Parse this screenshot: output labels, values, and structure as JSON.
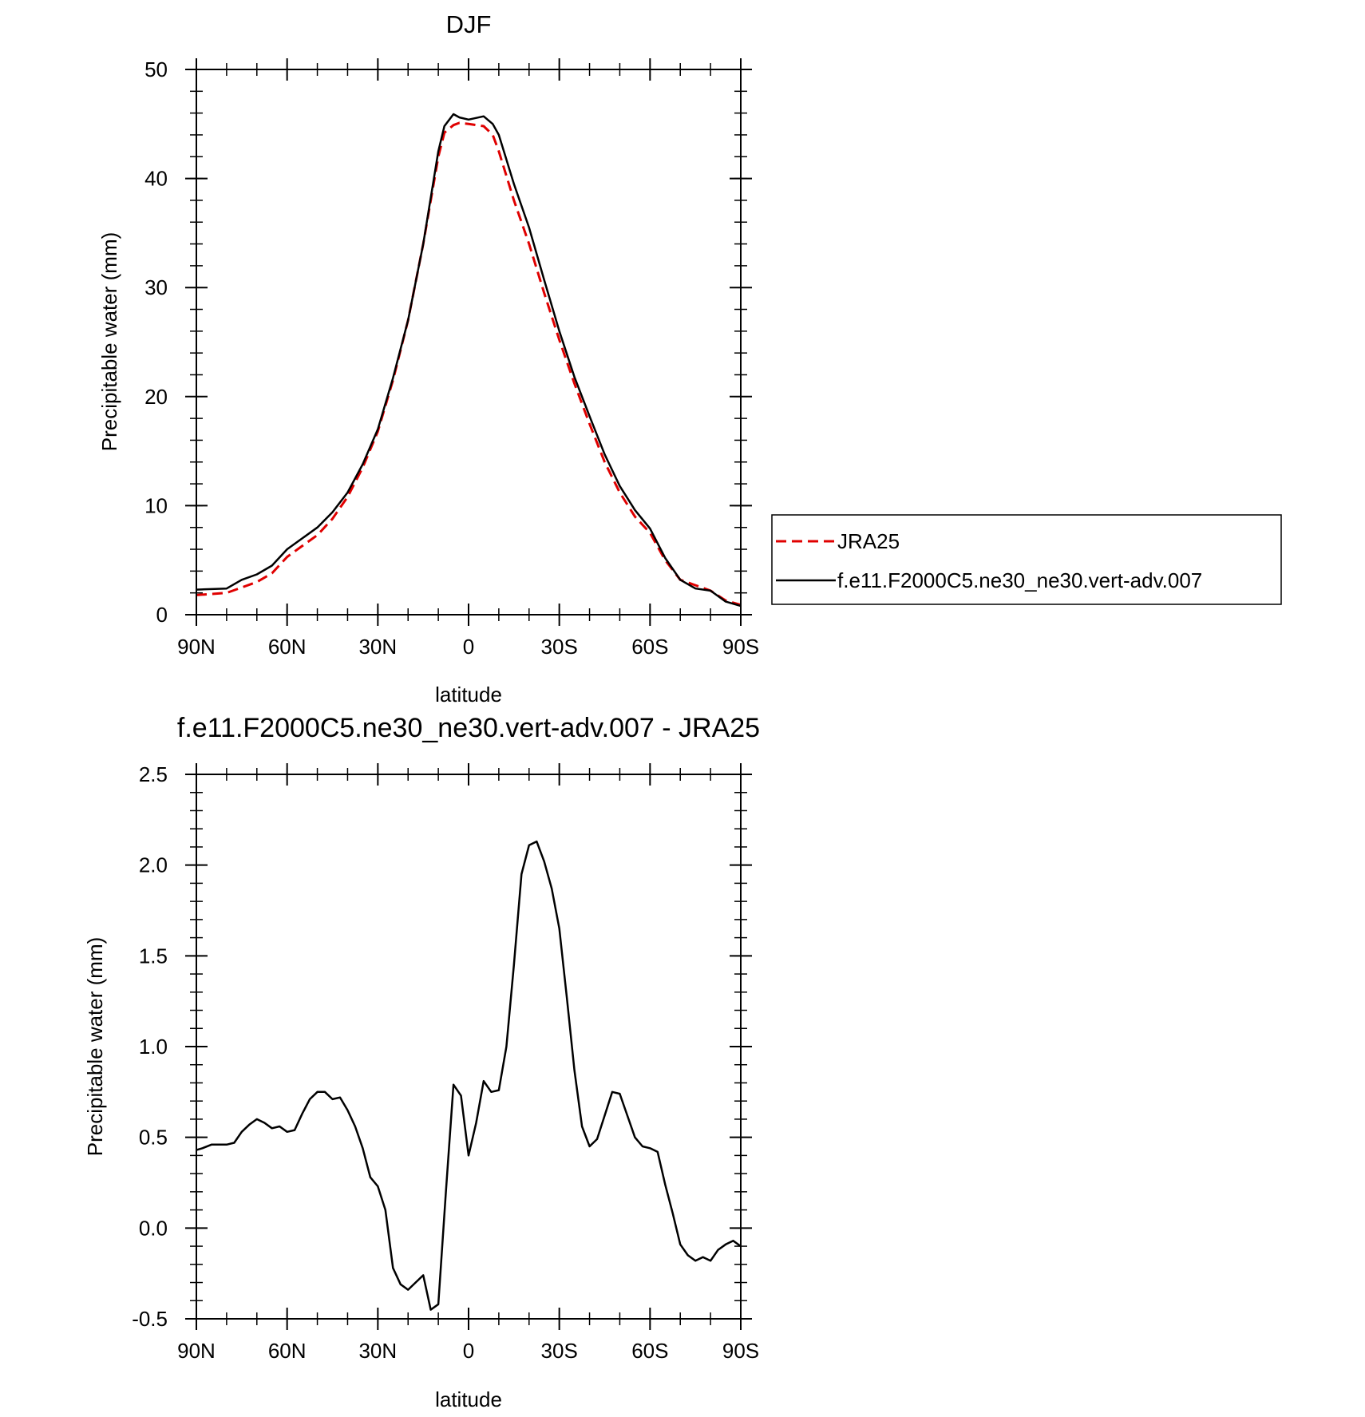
{
  "chart_data": [
    {
      "type": "line",
      "title": "DJF",
      "xlabel": "latitude",
      "ylabel": "Precipitable water (mm)",
      "xlim": [
        90,
        -90
      ],
      "ylim": [
        0,
        50
      ],
      "xticks": [
        90,
        60,
        30,
        0,
        -30,
        -60,
        -90
      ],
      "xticklabels": [
        "90N",
        "60N",
        "30N",
        "0",
        "30S",
        "60S",
        "90S"
      ],
      "yticks": [
        0,
        10,
        20,
        30,
        40,
        50
      ],
      "yticklabels": [
        "0",
        "10",
        "20",
        "30",
        "40",
        "50"
      ],
      "legend_position": "right",
      "grid": false,
      "series": [
        {
          "name": "JRA25",
          "color": "#e00000",
          "dash": "dashed",
          "x": [
            90,
            80,
            75,
            70,
            65,
            60,
            55,
            50,
            45,
            40,
            35,
            30,
            25,
            20,
            15,
            10,
            8,
            5,
            3,
            0,
            -5,
            -8,
            -10,
            -15,
            -20,
            -25,
            -30,
            -35,
            -40,
            -45,
            -50,
            -55,
            -60,
            -65,
            -70,
            -75,
            -80,
            -85,
            -90
          ],
          "y": [
            1.8,
            2.0,
            2.5,
            3.0,
            3.8,
            5.3,
            6.3,
            7.3,
            8.8,
            10.8,
            13.5,
            16.8,
            21.5,
            27.0,
            34.0,
            42.0,
            44.2,
            44.9,
            45.1,
            45.0,
            44.8,
            44.0,
            42.5,
            38.0,
            34.0,
            29.5,
            25.2,
            21.2,
            17.5,
            14.0,
            11.2,
            9.0,
            7.5,
            5.0,
            3.2,
            2.7,
            2.2,
            1.3,
            0.9
          ]
        },
        {
          "name": "f.e11.F2000C5.ne30_ne30.vert-adv.007",
          "color": "#000000",
          "dash": "solid",
          "x": [
            90,
            80,
            75,
            70,
            65,
            60,
            55,
            50,
            45,
            40,
            35,
            30,
            25,
            20,
            15,
            10,
            8,
            5,
            3,
            0,
            -5,
            -8,
            -10,
            -15,
            -20,
            -25,
            -30,
            -35,
            -40,
            -45,
            -50,
            -55,
            -60,
            -65,
            -70,
            -75,
            -80,
            -85,
            -90
          ],
          "y": [
            2.3,
            2.4,
            3.2,
            3.7,
            4.5,
            6.0,
            7.0,
            8.0,
            9.4,
            11.2,
            13.8,
            17.0,
            21.7,
            27.0,
            34.0,
            42.5,
            44.8,
            45.9,
            45.6,
            45.4,
            45.7,
            45.0,
            44.0,
            39.5,
            35.5,
            30.7,
            26.0,
            21.8,
            18.2,
            14.7,
            11.8,
            9.6,
            7.9,
            5.2,
            3.2,
            2.4,
            2.2,
            1.2,
            0.8
          ]
        }
      ]
    },
    {
      "type": "line",
      "title": "f.e11.F2000C5.ne30_ne30.vert-adv.007 - JRA25",
      "xlabel": "latitude",
      "ylabel": "Precipitable water (mm)",
      "xlim": [
        90,
        -90
      ],
      "ylim": [
        -0.5,
        2.5
      ],
      "xticks": [
        90,
        60,
        30,
        0,
        -30,
        -60,
        -90
      ],
      "xticklabels": [
        "90N",
        "60N",
        "30N",
        "0",
        "30S",
        "60S",
        "90S"
      ],
      "yticks": [
        -0.5,
        0.0,
        0.5,
        1.0,
        1.5,
        2.0,
        2.5
      ],
      "yticklabels": [
        "-0.5",
        "0.0",
        "0.5",
        "1.0",
        "1.5",
        "2.0",
        "2.5"
      ],
      "grid": false,
      "series": [
        {
          "color": "#000000",
          "dash": "solid",
          "x": [
            90,
            88,
            85,
            80,
            77.5,
            75,
            72.5,
            70,
            67.5,
            65,
            62.5,
            60,
            57.5,
            55,
            52.5,
            50,
            47.5,
            45,
            42.5,
            40,
            37.5,
            35,
            32.5,
            30,
            27.5,
            25,
            22.5,
            20,
            17.5,
            15,
            12.5,
            10,
            7.5,
            5,
            2.5,
            0,
            -2.5,
            -5,
            -7.5,
            -10,
            -12.5,
            -15,
            -17.5,
            -20,
            -22.5,
            -25,
            -27.5,
            -30,
            -32.5,
            -35,
            -37.5,
            -40,
            -42.5,
            -45,
            -47.5,
            -50,
            -52.5,
            -55,
            -57.5,
            -60,
            -62.5,
            -65,
            -67.5,
            -70,
            -72.5,
            -75,
            -77.5,
            -80,
            -82.5,
            -85,
            -87.5,
            -90
          ],
          "y": [
            0.43,
            0.44,
            0.46,
            0.46,
            0.47,
            0.53,
            0.57,
            0.6,
            0.58,
            0.55,
            0.56,
            0.53,
            0.54,
            0.63,
            0.71,
            0.75,
            0.75,
            0.71,
            0.72,
            0.65,
            0.56,
            0.44,
            0.28,
            0.23,
            0.1,
            -0.22,
            -0.31,
            -0.34,
            -0.3,
            -0.26,
            -0.45,
            -0.42,
            0.2,
            0.79,
            0.73,
            0.4,
            0.58,
            0.81,
            0.75,
            0.76,
            1.0,
            1.45,
            1.95,
            2.11,
            2.13,
            2.02,
            1.87,
            1.65,
            1.27,
            0.87,
            0.56,
            0.45,
            0.49,
            0.62,
            0.75,
            0.74,
            0.62,
            0.5,
            0.45,
            0.44,
            0.42,
            0.24,
            0.08,
            -0.09,
            -0.15,
            -0.18,
            -0.16,
            -0.18,
            -0.12,
            -0.09,
            -0.07,
            -0.1
          ]
        }
      ]
    }
  ],
  "legend": {
    "items": [
      {
        "label": "JRA25",
        "color": "#e00000",
        "dash": "dashed"
      },
      {
        "label": "f.e11.F2000C5.ne30_ne30.vert-adv.007",
        "color": "#000000",
        "dash": "solid"
      }
    ]
  }
}
